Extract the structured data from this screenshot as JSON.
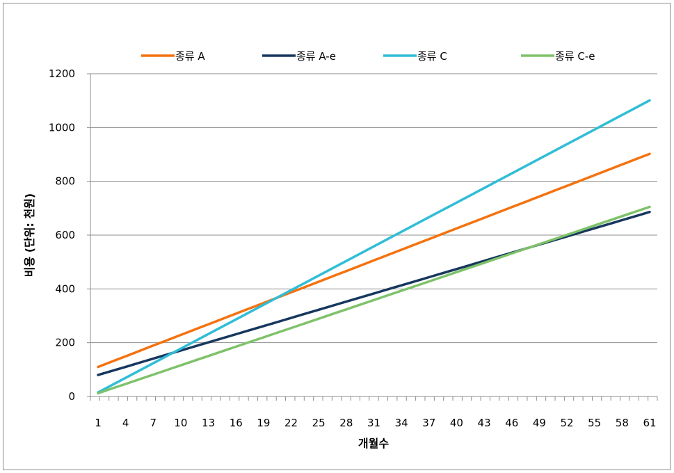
{
  "chart_data": {
    "type": "line",
    "title": "",
    "xlabel": "개월수",
    "ylabel": "비용 (단위: 천원)",
    "ylim": [
      0,
      1200
    ],
    "yticks": [
      0,
      200,
      400,
      600,
      800,
      1000,
      1200
    ],
    "xlim": [
      1,
      61
    ],
    "xticks": [
      1,
      4,
      7,
      10,
      13,
      16,
      19,
      22,
      25,
      28,
      31,
      34,
      37,
      40,
      43,
      46,
      49,
      52,
      55,
      58,
      61
    ],
    "grid": "horizontal",
    "legend": "top",
    "series": [
      {
        "name": "종류 A",
        "color": "#f4720f",
        "start": 110,
        "slope": 13.2
      },
      {
        "name": "종류 A-e",
        "color": "#17375e",
        "start": 80,
        "slope": 10.1
      },
      {
        "name": "종류 C",
        "color": "#31bdd6",
        "start": 15,
        "slope": 18.1
      },
      {
        "name": "종류 C-e",
        "color": "#7ec26a",
        "start": 12,
        "slope": 11.55
      }
    ]
  }
}
